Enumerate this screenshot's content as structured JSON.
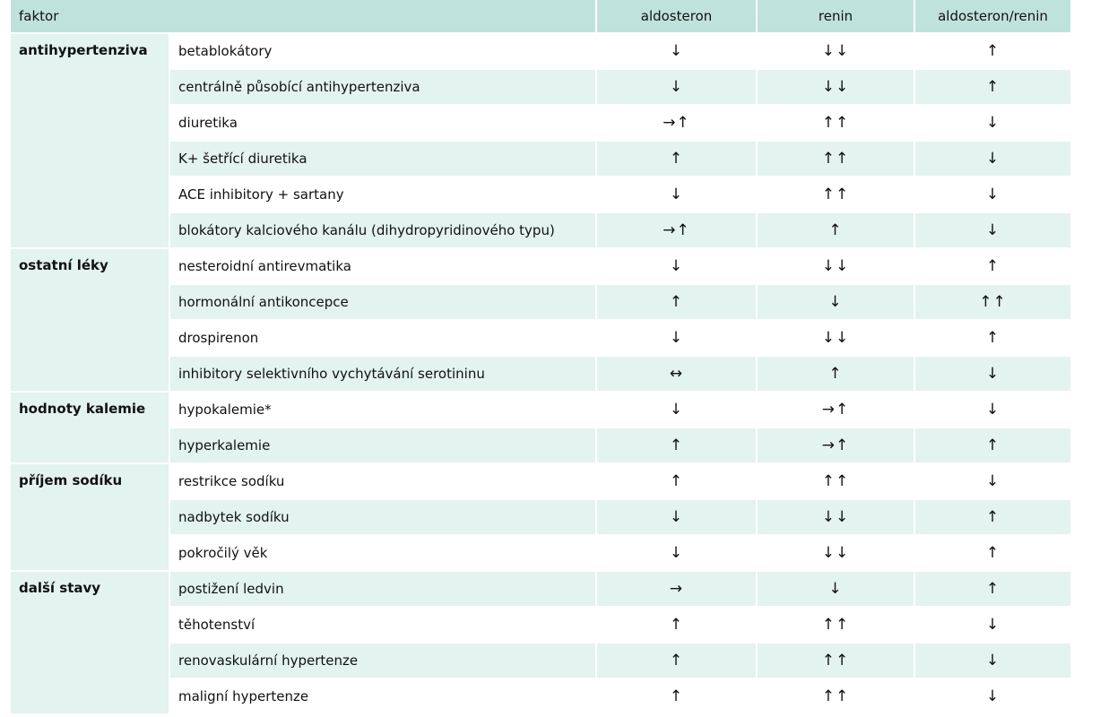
{
  "headers": {
    "factor": "faktor",
    "aldosterone": "aldosteron",
    "renin": "renin",
    "ratio": "aldosteron/renin"
  },
  "groups": [
    {
      "category": "antihypertenziva",
      "rows": [
        {
          "item": "betablokátory",
          "aldosterone": "↓",
          "renin": "↓↓",
          "ratio": "↑"
        },
        {
          "item": "centrálně působící antihypertenziva",
          "aldosterone": "↓",
          "renin": "↓↓",
          "ratio": "↑"
        },
        {
          "item": "diuretika",
          "aldosterone": "→↑",
          "renin": "↑↑",
          "ratio": "↓"
        },
        {
          "item": "K+ šetřící diuretika",
          "aldosterone": "↑",
          "renin": "↑↑",
          "ratio": "↓"
        },
        {
          "item": "ACE inhibitory + sartany",
          "aldosterone": "↓",
          "renin": "↑↑",
          "ratio": "↓"
        },
        {
          "item": "blokátory kalciového kanálu (dihydropyridinového typu)",
          "aldosterone": "→↑",
          "renin": "↑",
          "ratio": "↓"
        }
      ]
    },
    {
      "category": "ostatní léky",
      "rows": [
        {
          "item": "nesteroidní antirevmatika",
          "aldosterone": "↓",
          "renin": "↓↓",
          "ratio": "↑"
        },
        {
          "item": "hormonální antikoncepce",
          "aldosterone": "↑",
          "renin": "↓",
          "ratio": "↑↑"
        },
        {
          "item": "drospirenon",
          "aldosterone": "↓",
          "renin": "↓↓",
          "ratio": "↑"
        },
        {
          "item": "inhibitory selektivního vychytávání serotininu",
          "aldosterone": "↔",
          "renin": "↑",
          "ratio": "↓"
        }
      ]
    },
    {
      "category": "hodnoty kalemie",
      "rows": [
        {
          "item": "hypokalemie*",
          "aldosterone": "↓",
          "renin": "→↑",
          "ratio": "↓"
        },
        {
          "item": "hyperkalemie",
          "aldosterone": "↑",
          "renin": "→↑",
          "ratio": "↑"
        }
      ]
    },
    {
      "category": "příjem sodíku",
      "rows": [
        {
          "item": "restrikce sodíku",
          "aldosterone": "↑",
          "renin": "↑↑",
          "ratio": "↓"
        },
        {
          "item": "nadbytek sodíku",
          "aldosterone": "↓",
          "renin": "↓↓",
          "ratio": "↑"
        },
        {
          "item": "pokročilý věk",
          "aldosterone": "↓",
          "renin": "↓↓",
          "ratio": "↑"
        }
      ]
    },
    {
      "category": "další stavy",
      "rows": [
        {
          "item": "postižení ledvin",
          "aldosterone": "→",
          "renin": "↓",
          "ratio": "↑"
        },
        {
          "item": "těhotenství",
          "aldosterone": "↑",
          "renin": "↑↑",
          "ratio": "↓"
        },
        {
          "item": "renovaskulární hypertenze",
          "aldosterone": "↑",
          "renin": "↑↑",
          "ratio": "↓"
        },
        {
          "item": "maligní hypertenze",
          "aldosterone": "↑",
          "renin": "↑↑",
          "ratio": "↓"
        }
      ]
    }
  ]
}
